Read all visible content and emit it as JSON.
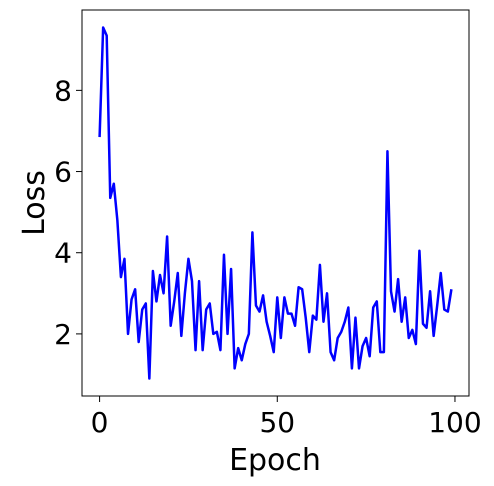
{
  "chart_data": {
    "type": "line",
    "xlabel": "Epoch",
    "ylabel": "Loss",
    "x": [
      0,
      1,
      2,
      3,
      4,
      5,
      6,
      7,
      8,
      9,
      10,
      11,
      12,
      13,
      14,
      15,
      16,
      17,
      18,
      19,
      20,
      21,
      22,
      23,
      24,
      25,
      26,
      27,
      28,
      29,
      30,
      31,
      32,
      33,
      34,
      35,
      36,
      37,
      38,
      39,
      40,
      41,
      42,
      43,
      44,
      45,
      46,
      47,
      48,
      49,
      50,
      51,
      52,
      53,
      54,
      55,
      56,
      57,
      58,
      59,
      60,
      61,
      62,
      63,
      64,
      65,
      66,
      67,
      68,
      69,
      70,
      71,
      72,
      73,
      74,
      75,
      76,
      77,
      78,
      79,
      80,
      81,
      82,
      83,
      84,
      85,
      86,
      87,
      88,
      89,
      90,
      91,
      92,
      93,
      94,
      95,
      96,
      97,
      98,
      99
    ],
    "series": [
      {
        "name": "Loss",
        "color": "#0000ff",
        "values": [
          6.85,
          9.55,
          9.35,
          5.35,
          5.7,
          4.8,
          3.4,
          3.85,
          2.0,
          2.85,
          3.1,
          1.8,
          2.6,
          2.75,
          0.9,
          3.55,
          2.8,
          3.45,
          3.0,
          4.4,
          2.2,
          2.8,
          3.5,
          1.95,
          3.0,
          3.85,
          3.3,
          1.6,
          3.3,
          1.6,
          2.6,
          2.75,
          2.0,
          2.05,
          1.6,
          3.95,
          2.0,
          3.6,
          1.15,
          1.65,
          1.35,
          1.75,
          2.0,
          4.5,
          2.7,
          2.55,
          2.95,
          2.3,
          1.95,
          1.55,
          2.9,
          1.9,
          2.9,
          2.5,
          2.5,
          2.2,
          3.15,
          3.1,
          2.4,
          1.55,
          2.45,
          2.35,
          3.7,
          2.3,
          3.0,
          1.55,
          1.35,
          1.9,
          2.05,
          2.3,
          2.65,
          1.15,
          2.4,
          1.15,
          1.7,
          1.9,
          1.45,
          2.65,
          2.8,
          1.55,
          1.55,
          6.5,
          3.05,
          2.55,
          3.35,
          2.3,
          2.9,
          1.9,
          2.1,
          1.75,
          4.05,
          2.25,
          2.15,
          3.05,
          1.95,
          2.7,
          3.5,
          2.6,
          2.55,
          3.1
        ]
      }
    ],
    "xlim": [
      -4.95,
      103.95
    ],
    "xticks": [
      0,
      50,
      100
    ],
    "ylim": [
      0.47,
      9.98
    ],
    "yticks": [
      2,
      4,
      6,
      8
    ],
    "grid": false
  }
}
